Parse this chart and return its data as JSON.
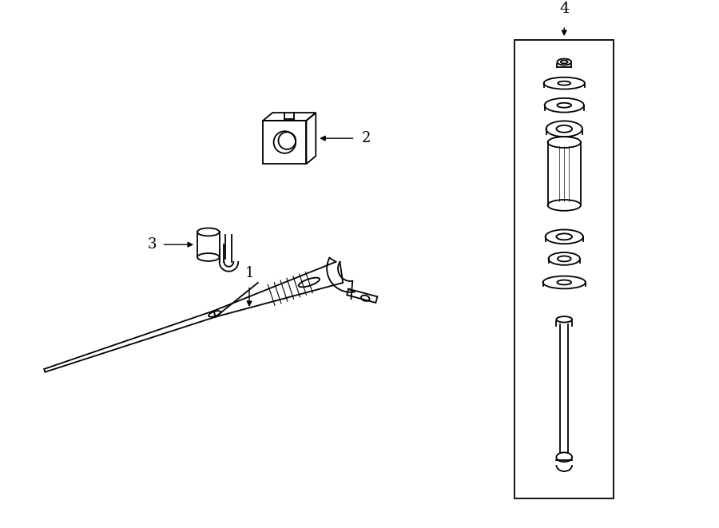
{
  "bg_color": "#ffffff",
  "line_color": "#000000",
  "fig_width": 9.0,
  "fig_height": 6.61,
  "dpi": 100,
  "label_1": "1",
  "label_2": "2",
  "label_3": "3",
  "label_4": "4",
  "font_size_labels": 13
}
